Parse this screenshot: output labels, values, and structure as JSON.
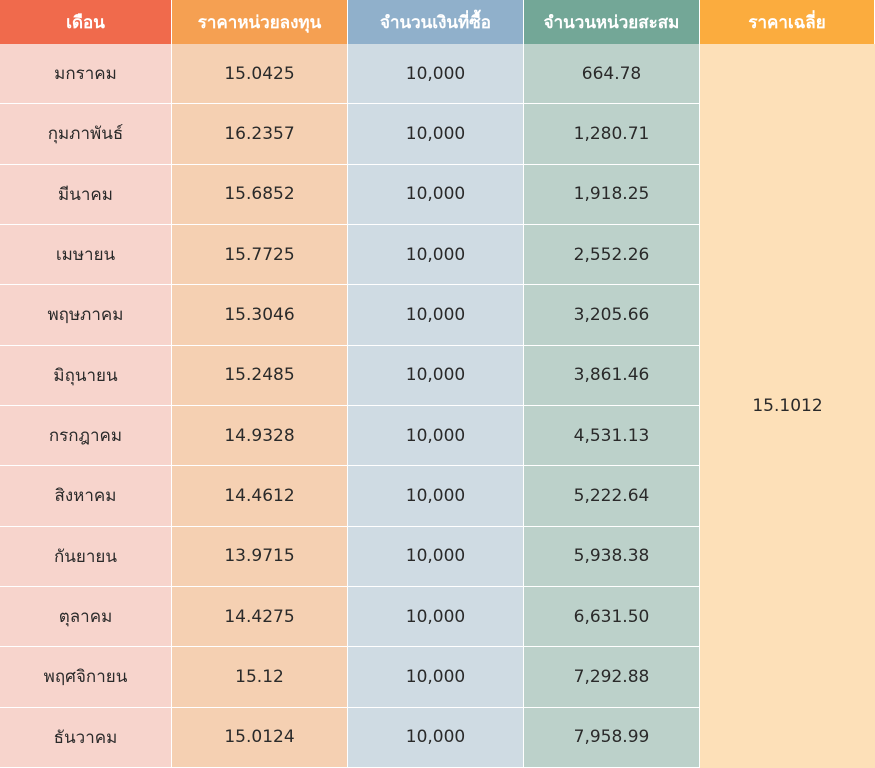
{
  "table": {
    "header_colors": [
      "#f06a4c",
      "#f5a052",
      "#90b0cb",
      "#73a797",
      "#fbac3e"
    ],
    "average_price": "15.1012"
  },
  "chart_data": {
    "type": "table",
    "columns": [
      "เดือน",
      "ราคาหน่วยลงทุน",
      "จำนวนเงินที่ซื้อ",
      "จำนวนหน่วยสะสม",
      "ราคาเฉลี่ย"
    ],
    "rows": [
      [
        "มกราคม",
        "15.0425",
        "10,000",
        "664.78"
      ],
      [
        "กุมภาพันธ์",
        "16.2357",
        "10,000",
        "1,280.71"
      ],
      [
        "มีนาคม",
        "15.6852",
        "10,000",
        "1,918.25"
      ],
      [
        "เมษายน",
        "15.7725",
        "10,000",
        "2,552.26"
      ],
      [
        "พฤษภาคม",
        "15.3046",
        "10,000",
        "3,205.66"
      ],
      [
        "มิถุนายน",
        "15.2485",
        "10,000",
        "3,861.46"
      ],
      [
        "กรกฎาคม",
        "14.9328",
        "10,000",
        "4,531.13"
      ],
      [
        "สิงหาคม",
        "14.4612",
        "10,000",
        "5,222.64"
      ],
      [
        "กันยายน",
        "13.9715",
        "10,000",
        "5,938.38"
      ],
      [
        "ตุลาคม",
        "14.4275",
        "10,000",
        "6,631.50"
      ],
      [
        "พฤศจิกายน",
        "15.12",
        "10,000",
        "7,292.88"
      ],
      [
        "ธันวาคม",
        "15.0124",
        "10,000",
        "7,958.99"
      ]
    ]
  }
}
